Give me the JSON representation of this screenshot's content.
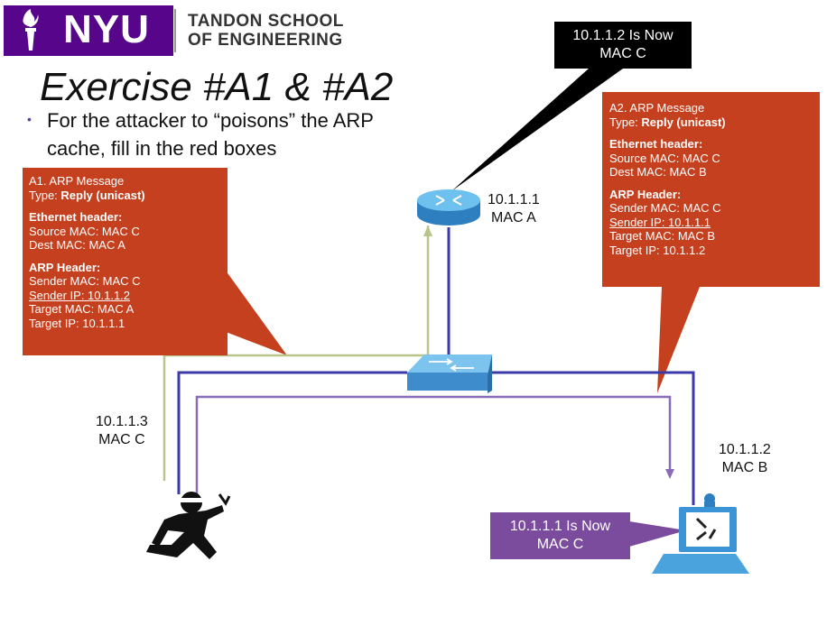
{
  "brand": {
    "name": "NYU",
    "school_line1": "TANDON SCHOOL",
    "school_line2": "OF ENGINEERING",
    "color": "#57068c"
  },
  "slide": {
    "title": "Exercise #A1 & #A2",
    "bullet": "For the attacker to “poisons” the ARP cache, fill in the red boxes"
  },
  "box_a1": {
    "line1": "A1. ARP Message",
    "type_label": "Type: ",
    "type_value": "Reply (unicast)",
    "eth_header": "Ethernet header:",
    "source_mac": "Source MAC: MAC C",
    "dest_mac": "Dest MAC: MAC A",
    "arp_header": "ARP Header:",
    "sender_mac": "Sender MAC: MAC C",
    "sender_ip": "Sender IP: 10.1.1.2",
    "target_mac": "Target MAC: MAC A",
    "target_ip": "Target IP: 10.1.1.1"
  },
  "box_a2": {
    "line1": "A2. ARP Message",
    "type_label": "Type: ",
    "type_value": "Reply (unicast)",
    "eth_header": "Ethernet header:",
    "source_mac": "Source MAC: MAC C",
    "dest_mac": "Dest  MAC: MAC B",
    "arp_header": "ARP Header:",
    "sender_mac": "Sender MAC: MAC C",
    "sender_ip": "Sender IP: 10.1.1.1",
    "target_mac": "Target MAC: MAC B",
    "target_ip": "Target IP: 10.1.1.2"
  },
  "router": {
    "ip": "10.1.1.1",
    "mac": "MAC A",
    "icon": "router-icon"
  },
  "attacker": {
    "ip": "10.1.1.3",
    "mac": "MAC C",
    "icon": "attacker-icon"
  },
  "victim": {
    "ip": "10.1.1.2",
    "mac": "MAC B",
    "icon": "laptop-icon"
  },
  "switch": {
    "icon": "switch-icon"
  },
  "callout_router": {
    "line1": "10.1.1.2 Is Now",
    "line2": "MAC C"
  },
  "callout_victim": {
    "line1": "10.1.1.1 Is Now",
    "line2": "MAC C"
  },
  "colors": {
    "red_box": "#c4401e",
    "callout_black": "#000000",
    "callout_purple": "#7b4b9e",
    "link_blue": "#3b3aa8",
    "link_purple": "#8a6bb8",
    "link_green": "#b7c48a",
    "device_blue": "#4aa3dd"
  }
}
